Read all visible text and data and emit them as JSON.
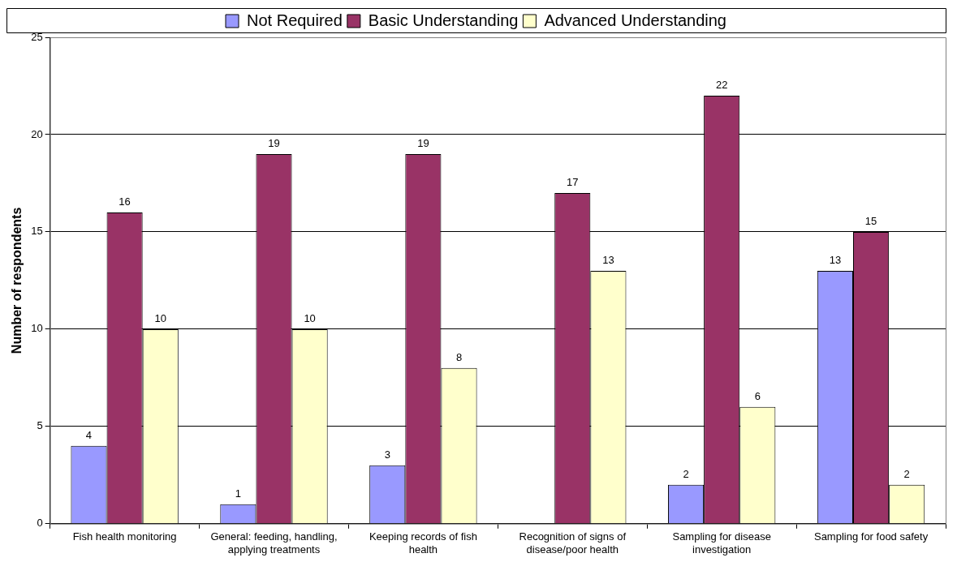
{
  "chart_data": {
    "type": "bar",
    "ylabel": "Number of respondents",
    "categories": [
      "Fish health monitoring",
      "General: feeding, handling, applying treatments",
      "Keeping records of fish health",
      "Recognition of signs of disease/poor health",
      "Sampling for disease investigation",
      "Sampling for food safety"
    ],
    "series": [
      {
        "name": "Not Required",
        "color": "#9999ff",
        "values": [
          4,
          1,
          3,
          null,
          2,
          13
        ]
      },
      {
        "name": "Basic Understanding",
        "color": "#993366",
        "values": [
          16,
          19,
          19,
          17,
          22,
          15
        ]
      },
      {
        "name": "Advanced Understanding",
        "color": "#ffffcc",
        "values": [
          10,
          10,
          8,
          13,
          6,
          2
        ]
      }
    ],
    "ylim": [
      0,
      25
    ],
    "yticks": [
      0,
      5,
      10,
      15,
      20,
      25
    ],
    "grid": "y",
    "legend": "top",
    "data_labels": true
  }
}
